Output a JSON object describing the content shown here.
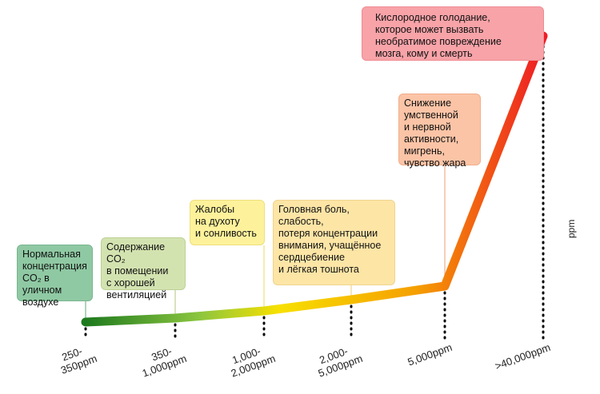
{
  "chart_data": {
    "type": "line",
    "title": "",
    "xlabel": "",
    "ylabel": "ppm",
    "categories": [
      "250-\n350ppm",
      "350-\n1,000ppm",
      "1,000-\n2,000ppm",
      "2,000-\n5,000ppm",
      "5,000ppm",
      ">40,000ppm"
    ],
    "values": [
      250,
      350,
      1000,
      2000,
      5000,
      40000
    ],
    "annotations": [
      "Нормальная\nконцентрация\nCO₂ в уличном\nвоздухе",
      "Содержание CO₂\nв помещении\nс хорошей\nвентиляцией",
      "Жалобы\nна духоту\nи сонливость",
      "Головная боль,\nслабость,\nпотеря концентрации\nвнимания, учащённое\nсердцебиение\nи лёгкая тошнота",
      "Снижение\nумственной\nи нервной\nактивности,\nмигрень,\nчувство жара",
      "Кислородное голодание,\nкоторое может вызвать\nнеобратимое повреждение\nмозга, кому и смерть"
    ],
    "colors": {
      "gradient": [
        "#1e7a1e",
        "#8cc63f",
        "#f7e000",
        "#f5a000",
        "#ee1c25"
      ],
      "box_fills": [
        "#8fc9a3",
        "#d3e3b0",
        "#fdf29b",
        "#fde5a6",
        "#fbc4a6",
        "#f7a3a8"
      ],
      "box_borders": [
        "#7ab68f",
        "#bcd096",
        "#eedf7c",
        "#f0d48d",
        "#f0ae8c",
        "#ef8d93"
      ],
      "dots": "#000000"
    },
    "grid": false,
    "legend": "none"
  }
}
